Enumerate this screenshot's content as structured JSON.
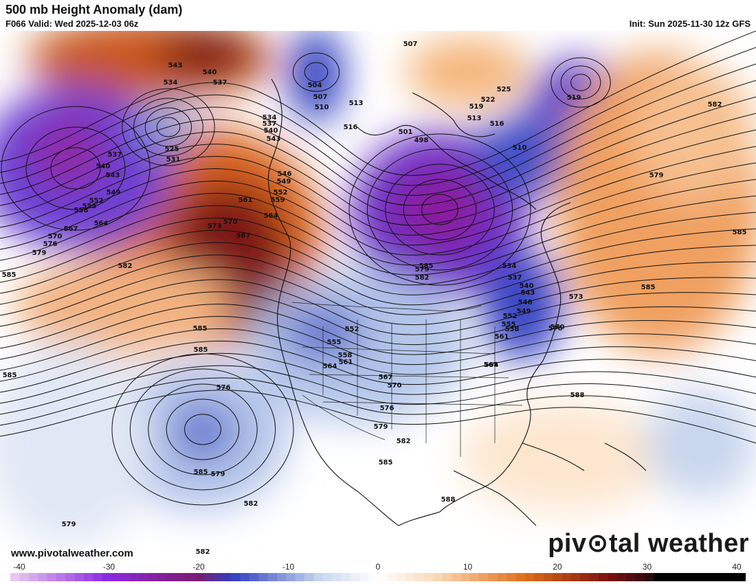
{
  "header": {
    "title": "500 mb Height Anomaly (dam)",
    "valid": "F066 Valid: Wed 2025-12-03 06z",
    "init": "Init: Sun 2025-11-30 12z GFS"
  },
  "footer": {
    "website": "www.pivotalweather.com",
    "brand_left": "piv",
    "brand_right": "tal weather"
  },
  "colorbar": {
    "min": -40,
    "max": 40,
    "tick_labels": [
      "-40",
      "-30",
      "-20",
      "-10",
      "0",
      "10",
      "20",
      "30",
      "40"
    ],
    "colors": {
      "neg_low": "#e8c8ee",
      "neg_mid": "#8a2be2",
      "neg_blue": "#3040c0",
      "neg_light": "#c8d8ee",
      "zero": "#ffffff",
      "pos_light": "#fbd9b8",
      "pos_mid": "#e0701a",
      "pos_dark": "#7a1010",
      "pos_max": "#c8c8c8"
    }
  },
  "contour_labels": [
    "543",
    "540",
    "537",
    "534",
    "525",
    "531",
    "537",
    "540",
    "543",
    "549",
    "552",
    "555",
    "558",
    "564",
    "567",
    "570",
    "576",
    "579",
    "582",
    "585",
    "561",
    "573",
    "570",
    "567",
    "564",
    "559",
    "552",
    "549",
    "546",
    "543",
    "540",
    "537",
    "534",
    "504",
    "507",
    "510",
    "513",
    "516",
    "501",
    "498",
    "507",
    "525",
    "522",
    "519",
    "516",
    "513",
    "510",
    "519",
    "582",
    "579",
    "585",
    "585",
    "534",
    "537",
    "540",
    "543",
    "546",
    "549",
    "552",
    "555",
    "558",
    "561",
    "564",
    "567",
    "570",
    "573",
    "576",
    "579",
    "582",
    "585",
    "588",
    "552",
    "555",
    "558",
    "561",
    "564",
    "567",
    "570",
    "576",
    "579",
    "582",
    "585",
    "588",
    "585",
    "582",
    "579",
    "576",
    "585",
    "585",
    "585",
    "579",
    "582"
  ]
}
